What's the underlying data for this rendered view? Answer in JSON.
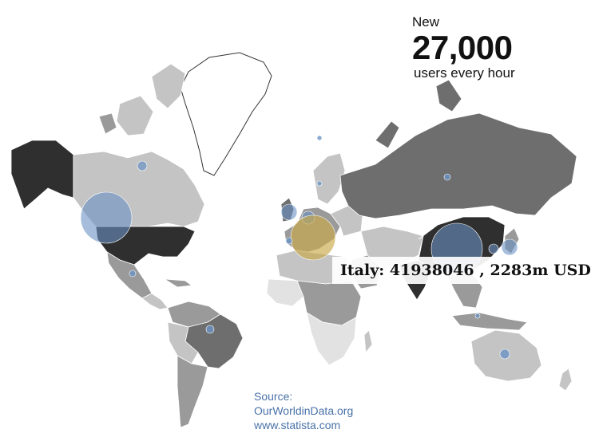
{
  "stats": {
    "kicker": "New",
    "value": "27,000",
    "caption": "users every hour"
  },
  "tooltip": {
    "text": "Italy: 41938046 , 2283m USD"
  },
  "source": {
    "label": "Source:",
    "lines": [
      "OurWorldinData.org",
      "www.statista.com"
    ]
  },
  "colors": {
    "bubble_blue": "#6b93c4",
    "bubble_highlight": "#c9a94a",
    "shade_darkest": "#2f2f2f",
    "shade_dark": "#6e6e6e",
    "shade_mid": "#9a9a9a",
    "shade_light": "#c4c4c4",
    "shade_lightest": "#e2e2e2",
    "no_data": "#ffffff"
  }
}
